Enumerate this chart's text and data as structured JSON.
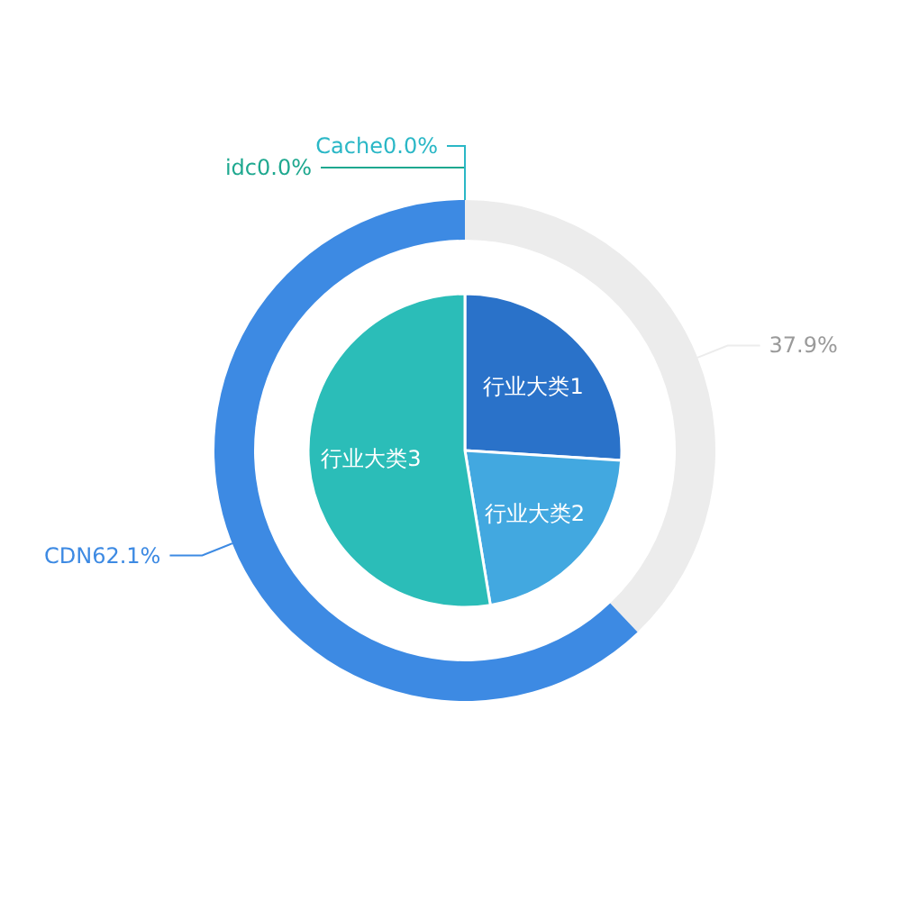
{
  "chart_data": [
    {
      "type": "donut",
      "categories": [
        null,
        "CDN",
        "idc",
        "Cache"
      ],
      "values": [
        37.9,
        62.1,
        0,
        0
      ],
      "value_labels": [
        "37.9%",
        "62.1%",
        "0.0%",
        "0.0%"
      ],
      "colors": [
        "#ececec",
        "#3d8ae3",
        "#1ea88f",
        "#2ab7c6"
      ]
    },
    {
      "type": "pie",
      "categories": [
        "行业大类1",
        "行业大类2",
        "行业大类3"
      ],
      "values": [
        26,
        21.4,
        52.6
      ],
      "colors": [
        "#2a72c9",
        "#42a8e0",
        "#2bbdb8"
      ]
    }
  ]
}
